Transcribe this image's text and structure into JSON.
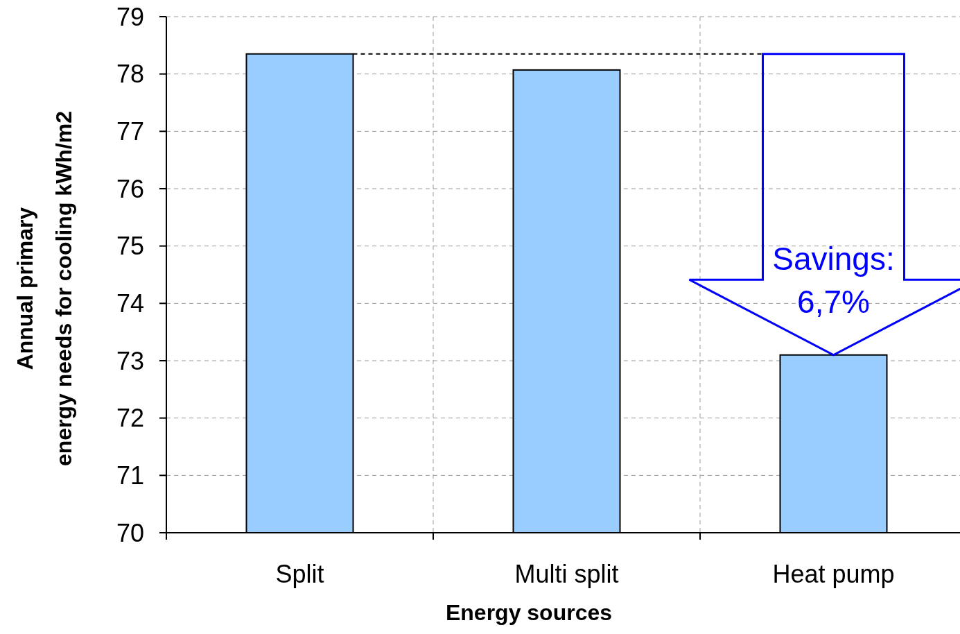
{
  "chart_data": {
    "type": "bar",
    "xlabel": "Energy sources",
    "ylabel": "Annual primary\nenergy needs for cooling kWh/m2",
    "categories": [
      "Split",
      "Multi split",
      "Heat pump"
    ],
    "values": [
      78.35,
      78.07,
      73.1
    ],
    "color": "#99ccff",
    "ylim": [
      70,
      79
    ],
    "yticks": [
      70,
      71,
      72,
      73,
      74,
      75,
      76,
      77,
      78,
      79
    ],
    "grid": true,
    "ref_lines": [
      {
        "axis": "y",
        "value": 78.35,
        "line_style": "dashed",
        "color": "#000000"
      }
    ],
    "annotations": [
      "Savings: 6,7%"
    ]
  }
}
